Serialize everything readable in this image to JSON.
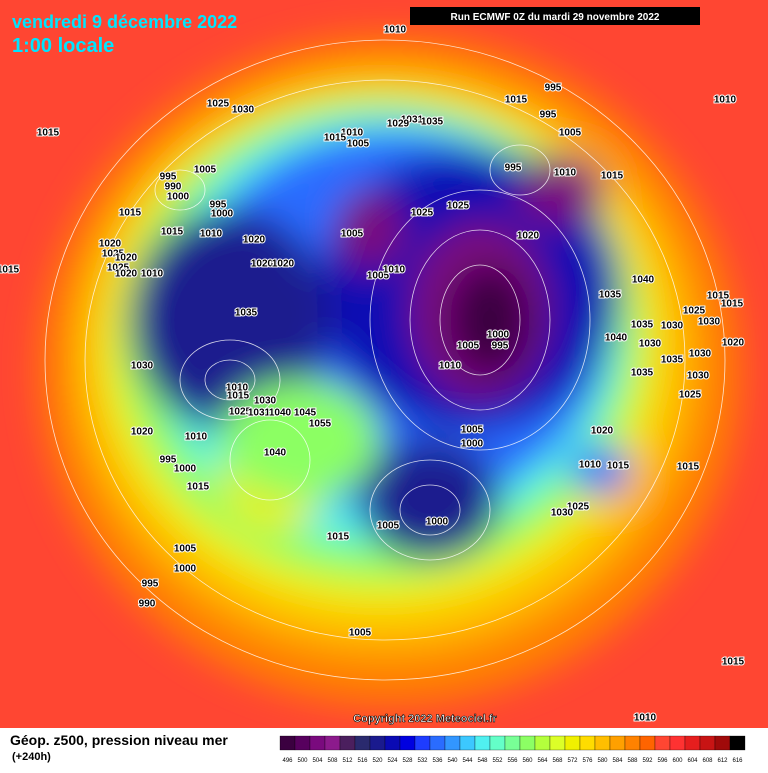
{
  "header": {
    "date": "vendredi 9 décembre 2022",
    "time": "1:00 locale",
    "run": "Run ECMWF 0Z du mardi 29 novembre 2022"
  },
  "footer": {
    "title": "Géop. z500, pression niveau mer",
    "lead": "(+240h)",
    "copyright": "Copyright 2022 Meteociel.fr"
  },
  "scale": {
    "labels": [
      "496",
      "500",
      "504",
      "508",
      "512",
      "516",
      "520",
      "524",
      "528",
      "532",
      "536",
      "540",
      "544",
      "548",
      "552",
      "556",
      "560",
      "564",
      "568",
      "572",
      "576",
      "580",
      "584",
      "588",
      "592",
      "596",
      "600",
      "604",
      "608",
      "612",
      "616"
    ],
    "colors": [
      "#3b0040",
      "#57005e",
      "#7a0a7e",
      "#8c1a8c",
      "#4b1f5e",
      "#2a2a6e",
      "#1a1a8e",
      "#0a0ab4",
      "#0000e0",
      "#1e3cff",
      "#2a6cff",
      "#3296ff",
      "#3cc8ff",
      "#50f0f0",
      "#64ffc8",
      "#78ff96",
      "#8cff64",
      "#b4ff3c",
      "#dcff28",
      "#f0f000",
      "#ffdc00",
      "#ffbe00",
      "#ffa000",
      "#ff8200",
      "#ff6400",
      "#ff4632",
      "#ff3232",
      "#e61e1e",
      "#c81414",
      "#a00a0a",
      "#000000"
    ]
  },
  "isobar_labels": [
    "1010",
    "1025",
    "1030",
    "1015",
    "1015",
    "995",
    "1010",
    "995",
    "1005",
    "1031",
    "1035",
    "1029",
    "1010",
    "1015",
    "1005",
    "995",
    "1005",
    "990",
    "1000",
    "995",
    "1000",
    "1015",
    "1015",
    "1010",
    "1020",
    "995",
    "1010",
    "1015",
    "1025",
    "1025",
    "1005",
    "1020",
    "1020",
    "1025",
    "1020",
    "1025",
    "1020",
    "1010",
    "1015",
    "1020",
    "1020",
    "1005",
    "1010",
    "1040",
    "1035",
    "1015",
    "1015",
    "1025",
    "1035",
    "1035",
    "1030",
    "1030",
    "1000",
    "1005",
    "995",
    "1040",
    "1030",
    "1020",
    "1030",
    "1010",
    "1035",
    "1030",
    "1035",
    "1030",
    "1010",
    "1015",
    "1025",
    "1030",
    "1025",
    "1031",
    "1040",
    "1045",
    "1055",
    "1005",
    "1000",
    "1020",
    "1010",
    "1020",
    "1040",
    "1010",
    "1015",
    "1015",
    "995",
    "1000",
    "1015",
    "1025",
    "1030",
    "1005",
    "1000",
    "1015",
    "1005",
    "1000",
    "995",
    "990",
    "1005",
    "1015",
    "1010"
  ]
}
